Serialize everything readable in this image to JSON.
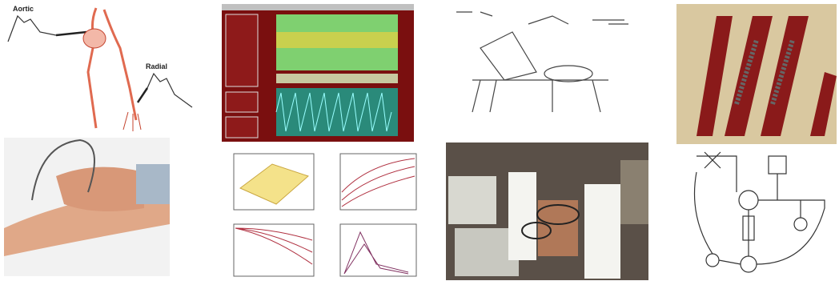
{
  "labels": {
    "aortic": "Aortic",
    "radial": "Radial"
  }
}
